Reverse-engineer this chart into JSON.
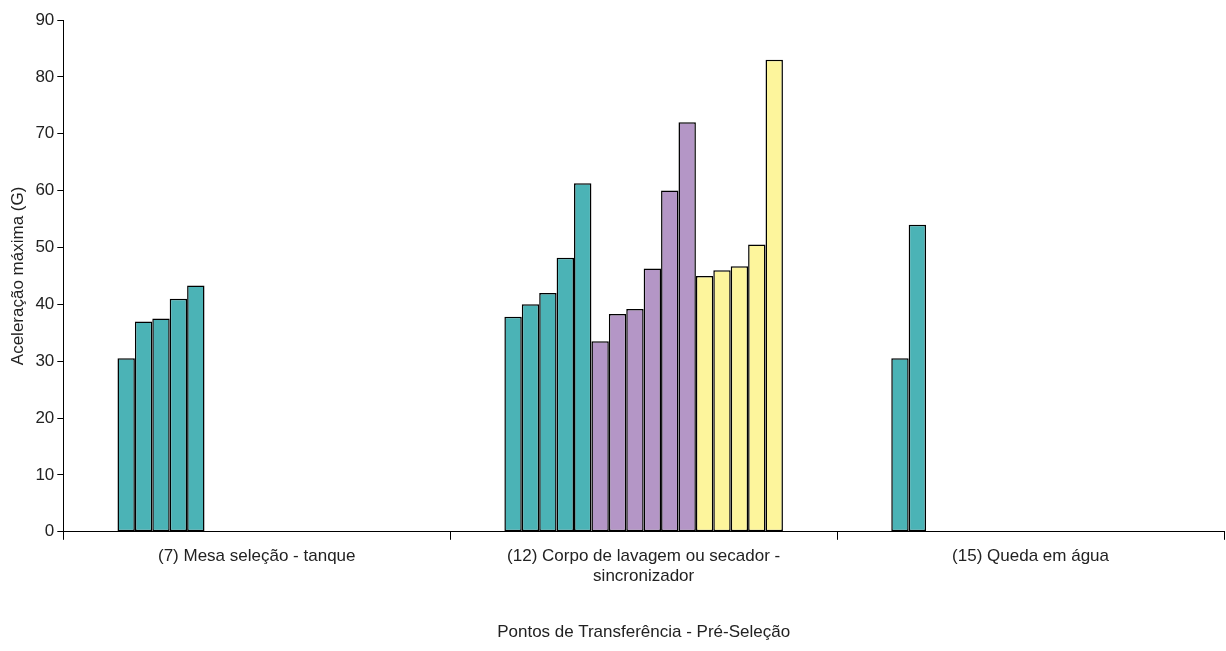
{
  "chart_data": {
    "type": "bar",
    "xlabel": "Pontos de Transferência - Pré-Seleção",
    "ylabel": "Aceleração máxima (G)",
    "categories": [
      "(7) Mesa seleção - tanque",
      "(12) Corpo de lavagem ou secador - sincronizador",
      "(15) Queda em água"
    ],
    "series": [
      {
        "color": "#4bb3b6",
        "values": [
          30.5,
          37.8,
          30.5
        ]
      },
      {
        "color": "#4bb3b6",
        "values": [
          37,
          40,
          54
        ]
      },
      {
        "color": "#4bb3b6",
        "values": [
          37.5,
          42,
          null
        ]
      },
      {
        "color": "#4bb3b6",
        "values": [
          41,
          48.2,
          null
        ]
      },
      {
        "color": "#4bb3b6",
        "values": [
          43.3,
          61.3,
          null
        ]
      },
      {
        "color": "#b496c6",
        "values": [
          null,
          33.5,
          null
        ]
      },
      {
        "color": "#b496c6",
        "values": [
          null,
          38.3,
          null
        ]
      },
      {
        "color": "#b496c6",
        "values": [
          null,
          39.2,
          null
        ]
      },
      {
        "color": "#b496c6",
        "values": [
          null,
          46.3,
          null
        ]
      },
      {
        "color": "#b496c6",
        "values": [
          null,
          60,
          null
        ]
      },
      {
        "color": "#b496c6",
        "values": [
          null,
          72,
          null
        ]
      },
      {
        "color": "#fdf59c",
        "values": [
          null,
          45,
          null
        ]
      },
      {
        "color": "#fdf59c",
        "values": [
          null,
          46,
          null
        ]
      },
      {
        "color": "#fdf59c",
        "values": [
          null,
          46.7,
          null
        ]
      },
      {
        "color": "#fdf59c",
        "values": [
          null,
          50.5,
          null
        ]
      },
      {
        "color": "#fdf59c",
        "values": [
          null,
          83,
          null
        ]
      }
    ],
    "ylim": [
      0,
      90
    ],
    "yticks": [
      0,
      10,
      20,
      30,
      40,
      50,
      60,
      70,
      80,
      90
    ],
    "grid": false,
    "legend": false
  }
}
